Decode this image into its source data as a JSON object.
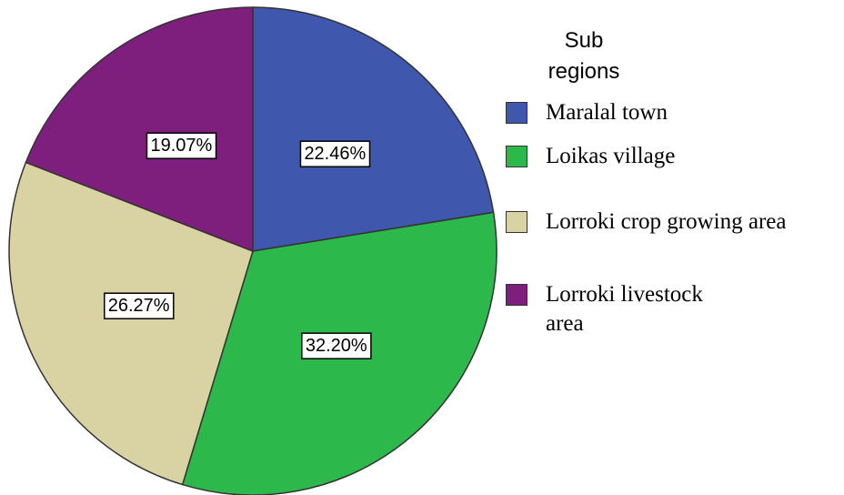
{
  "chart_data": {
    "type": "pie",
    "legend_title": "Sub regions",
    "categories": [
      "Maralal town",
      "Loikas village",
      "Lorroki crop growing area",
      "Lorroki livestock area"
    ],
    "values": [
      22.46,
      32.2,
      26.27,
      19.07
    ],
    "value_labels": [
      "22.46%",
      "32.20%",
      "26.27%",
      "19.07%"
    ],
    "colors": [
      "#3f58ad",
      "#2db84b",
      "#d9d2a2",
      "#7e1f7e"
    ],
    "legend": "right"
  }
}
